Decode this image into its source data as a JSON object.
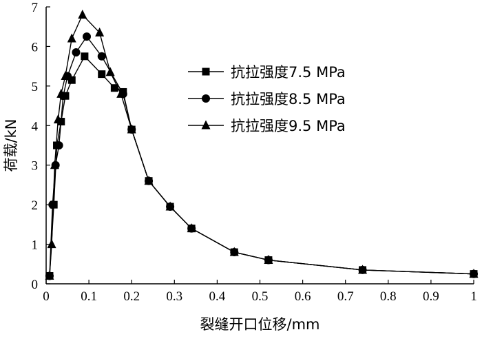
{
  "chart_data": {
    "type": "line",
    "xlabel": "裂缝开口位移/mm",
    "ylabel": "荷载/kN",
    "xlim": [
      0,
      1.0
    ],
    "ylim": [
      0,
      7
    ],
    "xticks": [
      0,
      0.1,
      0.2,
      0.3,
      0.4,
      0.5,
      0.6,
      0.7,
      0.8,
      0.9,
      1
    ],
    "xtick_labels": [
      "0",
      "0.1",
      "0.2",
      "0.3",
      "0.4",
      "0.5",
      "0.6",
      "0.7",
      "0.8",
      "0.9",
      "1"
    ],
    "yticks": [
      0,
      1,
      2,
      3,
      4,
      5,
      6,
      7
    ],
    "ytick_labels": [
      "0",
      "1",
      "2",
      "3",
      "4",
      "5",
      "6",
      "7"
    ],
    "grid": false,
    "legend_position": "center-right",
    "series": [
      {
        "name": "抗拉强度7.5 MPa",
        "marker": "square",
        "x": [
          0.008,
          0.018,
          0.025,
          0.035,
          0.045,
          0.06,
          0.09,
          0.13,
          0.16,
          0.18,
          0.2,
          0.24,
          0.29,
          0.34,
          0.44,
          0.52,
          0.74,
          1.0
        ],
        "y": [
          0.2,
          2.0,
          3.5,
          4.1,
          4.75,
          5.15,
          5.75,
          5.3,
          4.95,
          4.85,
          3.9,
          2.6,
          1.95,
          1.4,
          0.8,
          0.6,
          0.35,
          0.25
        ]
      },
      {
        "name": "抗拉强度8.5 MPa",
        "marker": "circle",
        "x": [
          0.008,
          0.015,
          0.022,
          0.03,
          0.04,
          0.05,
          0.07,
          0.095,
          0.13,
          0.18,
          0.2,
          0.24,
          0.29,
          0.34,
          0.44,
          0.52,
          0.74,
          1.0
        ],
        "y": [
          0.2,
          2.0,
          3.0,
          3.5,
          4.75,
          5.25,
          5.85,
          6.25,
          5.75,
          4.8,
          3.9,
          2.6,
          1.95,
          1.4,
          0.8,
          0.6,
          0.35,
          0.25
        ]
      },
      {
        "name": "抗拉强度9.5 MPa",
        "marker": "triangle",
        "x": [
          0.008,
          0.013,
          0.02,
          0.028,
          0.035,
          0.045,
          0.06,
          0.085,
          0.125,
          0.15,
          0.175,
          0.2,
          0.24,
          0.29,
          0.34,
          0.44,
          0.52,
          0.74,
          1.0
        ],
        "y": [
          0.2,
          1.0,
          3.0,
          4.15,
          4.8,
          5.25,
          6.2,
          6.8,
          6.35,
          5.35,
          4.8,
          3.9,
          2.6,
          1.95,
          1.4,
          0.8,
          0.6,
          0.35,
          0.25
        ]
      }
    ]
  }
}
